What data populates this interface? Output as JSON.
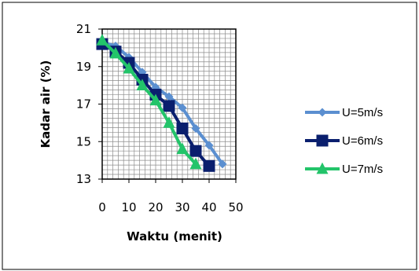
{
  "chart_data": {
    "type": "line",
    "title": "",
    "xlabel": "Waktu (menit)",
    "ylabel": "Kadar  air (%)",
    "xlim": [
      0,
      50
    ],
    "ylim": [
      13,
      21
    ],
    "xticks": [
      0,
      10,
      20,
      30,
      40,
      50
    ],
    "yticks": [
      13,
      15,
      17,
      19,
      21
    ],
    "grid": true,
    "legend_position": "right",
    "series": [
      {
        "name": "U=5m/s",
        "color": "#5b8fd0",
        "marker": "diamond",
        "points": [
          [
            0,
            20.3
          ],
          [
            5,
            20.1
          ],
          [
            10,
            19.5
          ],
          [
            15,
            18.7
          ],
          [
            20,
            17.9
          ],
          [
            25,
            17.4
          ],
          [
            30,
            16.8
          ],
          [
            35,
            15.7
          ],
          [
            40,
            14.8
          ],
          [
            45,
            13.8
          ]
        ]
      },
      {
        "name": "U=6m/s",
        "color": "#0a1f6e",
        "marker": "square",
        "points": [
          [
            0,
            20.2
          ],
          [
            5,
            19.8
          ],
          [
            10,
            19.2
          ],
          [
            15,
            18.3
          ],
          [
            20,
            17.5
          ],
          [
            25,
            16.9
          ],
          [
            30,
            15.7
          ],
          [
            35,
            14.5
          ],
          [
            40,
            13.7
          ]
        ]
      },
      {
        "name": "U=7m/s",
        "color": "#23c46a",
        "marker": "triangle",
        "points": [
          [
            0,
            20.4
          ],
          [
            5,
            19.7
          ],
          [
            10,
            18.9
          ],
          [
            15,
            18.0
          ],
          [
            20,
            17.2
          ],
          [
            25,
            16.0
          ],
          [
            30,
            14.6
          ],
          [
            35,
            13.8
          ]
        ]
      }
    ]
  }
}
